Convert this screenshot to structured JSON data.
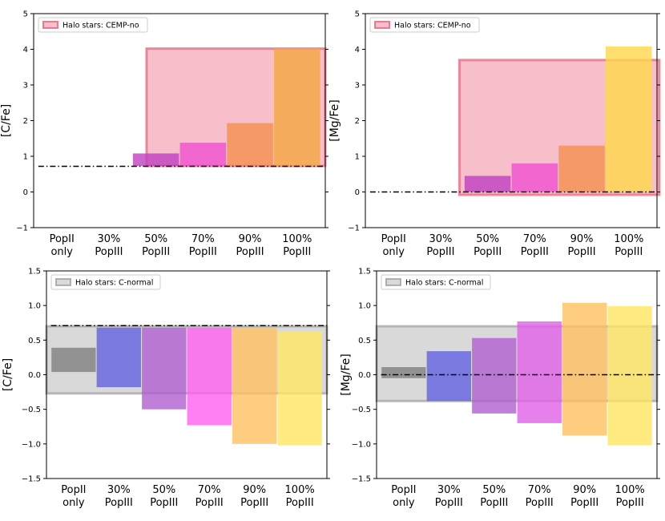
{
  "chart_data": [
    {
      "type": "bar",
      "id": "top-left",
      "ylabel": "[C/Fe]",
      "ylim": [
        -1,
        5
      ],
      "yticks": [
        "5",
        "4",
        "3",
        "2",
        "1",
        "0",
        "−1"
      ],
      "ytick_values": [
        5,
        4,
        3,
        2,
        1,
        0,
        -1
      ],
      "categories": [
        {
          "line1": "PopII",
          "line2": "only"
        },
        {
          "line1": "30%",
          "line2": "PopIII"
        },
        {
          "line1": "50%",
          "line2": "PopIII"
        },
        {
          "line1": "70%",
          "line2": "PopIII"
        },
        {
          "line1": "90%",
          "line2": "PopIII"
        },
        {
          "line1": "100%",
          "line2": "PopIII"
        }
      ],
      "bars": [
        {
          "category": 2,
          "low": 0.73,
          "high": 1.08,
          "color": "#c040c0"
        },
        {
          "category": 3,
          "low": 0.73,
          "high": 1.38,
          "color": "#f050d0"
        },
        {
          "category": 4,
          "low": 0.73,
          "high": 1.93,
          "color": "#f59050"
        },
        {
          "category": 5,
          "low": 0.73,
          "high": 4.02,
          "color": "#f5a840"
        }
      ],
      "halo_box": {
        "label": "Halo stars: CEMP-no",
        "x_from": 1.8,
        "x_to": 5.6,
        "low": 0.73,
        "high": 4.02,
        "color": "#e8607a"
      },
      "reference_line": 0.72,
      "legend_position": "top-left"
    },
    {
      "type": "bar",
      "id": "top-right",
      "ylabel": "[Mg/Fe]",
      "ylim": [
        -1,
        5
      ],
      "yticks": [
        "5",
        "4",
        "3",
        "2",
        "1",
        "0",
        "−1"
      ],
      "ytick_values": [
        5,
        4,
        3,
        2,
        1,
        0,
        -1
      ],
      "categories": [
        {
          "line1": "PopII",
          "line2": "only"
        },
        {
          "line1": "30%",
          "line2": "PopIII"
        },
        {
          "line1": "50%",
          "line2": "PopIII"
        },
        {
          "line1": "70%",
          "line2": "PopIII"
        },
        {
          "line1": "90%",
          "line2": "PopIII"
        },
        {
          "line1": "100%",
          "line2": "PopIII"
        }
      ],
      "bars": [
        {
          "category": 2,
          "low": 0.0,
          "high": 0.45,
          "color": "#c040c0"
        },
        {
          "category": 3,
          "low": 0.0,
          "high": 0.8,
          "color": "#f050d0"
        },
        {
          "category": 4,
          "low": 0.0,
          "high": 1.3,
          "color": "#f59050"
        },
        {
          "category": 5,
          "low": 0.0,
          "high": 4.08,
          "color": "#ffd84a"
        }
      ],
      "halo_box": {
        "label": "Halo stars: CEMP-no",
        "x_from": 1.4,
        "x_to": 5.65,
        "low": -0.08,
        "high": 3.7,
        "color": "#e8607a"
      },
      "reference_line": 0.0,
      "legend_position": "top-left"
    },
    {
      "type": "bar",
      "id": "bottom-left",
      "ylabel": "[C/Fe]",
      "ylim": [
        -1.5,
        1.5
      ],
      "yticks": [
        "1.5",
        "1.0",
        "0.5",
        "0.0",
        "−0.5",
        "−1.0",
        "−1.5"
      ],
      "ytick_values": [
        1.5,
        1.0,
        0.5,
        0.0,
        -0.5,
        -1.0,
        -1.5
      ],
      "categories": [
        {
          "line1": "PopII",
          "line2": "only"
        },
        {
          "line1": "30%",
          "line2": "PopIII"
        },
        {
          "line1": "50%",
          "line2": "PopIII"
        },
        {
          "line1": "70%",
          "line2": "PopIII"
        },
        {
          "line1": "90%",
          "line2": "PopIII"
        },
        {
          "line1": "100%",
          "line2": "PopIII"
        }
      ],
      "bars": [
        {
          "category": 0,
          "low": 0.04,
          "high": 0.39,
          "color": "#808080"
        },
        {
          "category": 1,
          "low": -0.18,
          "high": 0.68,
          "color": "#6060e0"
        },
        {
          "category": 2,
          "low": -0.5,
          "high": 0.68,
          "color": "#b060d0"
        },
        {
          "category": 3,
          "low": -0.73,
          "high": 0.68,
          "color": "#ff60f0"
        },
        {
          "category": 4,
          "low": -1.0,
          "high": 0.68,
          "color": "#ffc060"
        },
        {
          "category": 5,
          "low": -1.02,
          "high": 0.63,
          "color": "#ffe660"
        }
      ],
      "halo_box": {
        "label": "Halo stars: C-normal",
        "x_from": -0.6,
        "x_to": 5.6,
        "low": -0.27,
        "high": 0.7,
        "color": "#a0a0a0"
      },
      "reference_line": 0.71,
      "legend_position": "top-left"
    },
    {
      "type": "bar",
      "id": "bottom-right",
      "ylabel": "[Mg/Fe]",
      "ylim": [
        -1.5,
        1.5
      ],
      "yticks": [
        "1.5",
        "1.0",
        "0.5",
        "0.0",
        "−0.5",
        "−1.0",
        "−1.5"
      ],
      "ytick_values": [
        1.5,
        1.0,
        0.5,
        0.0,
        -0.5,
        -1.0,
        -1.5
      ],
      "categories": [
        {
          "line1": "PopII",
          "line2": "only"
        },
        {
          "line1": "30%",
          "line2": "PopIII"
        },
        {
          "line1": "50%",
          "line2": "PopIII"
        },
        {
          "line1": "70%",
          "line2": "PopIII"
        },
        {
          "line1": "90%",
          "line2": "PopIII"
        },
        {
          "line1": "100%",
          "line2": "PopIII"
        }
      ],
      "bars": [
        {
          "category": 0,
          "low": -0.05,
          "high": 0.11,
          "color": "#808080"
        },
        {
          "category": 1,
          "low": -0.38,
          "high": 0.34,
          "color": "#6060e0"
        },
        {
          "category": 2,
          "low": -0.56,
          "high": 0.53,
          "color": "#b060d0"
        },
        {
          "category": 3,
          "low": -0.7,
          "high": 0.77,
          "color": "#e060e8"
        },
        {
          "category": 4,
          "low": -0.88,
          "high": 1.04,
          "color": "#ffc060"
        },
        {
          "category": 5,
          "low": -1.02,
          "high": 0.99,
          "color": "#ffe660"
        }
      ],
      "halo_box": {
        "label": "Halo stars: C-normal",
        "x_from": -0.6,
        "x_to": 5.6,
        "low": -0.38,
        "high": 0.7,
        "color": "#a0a0a0"
      },
      "reference_line": 0.0,
      "legend_position": "top-left"
    }
  ]
}
